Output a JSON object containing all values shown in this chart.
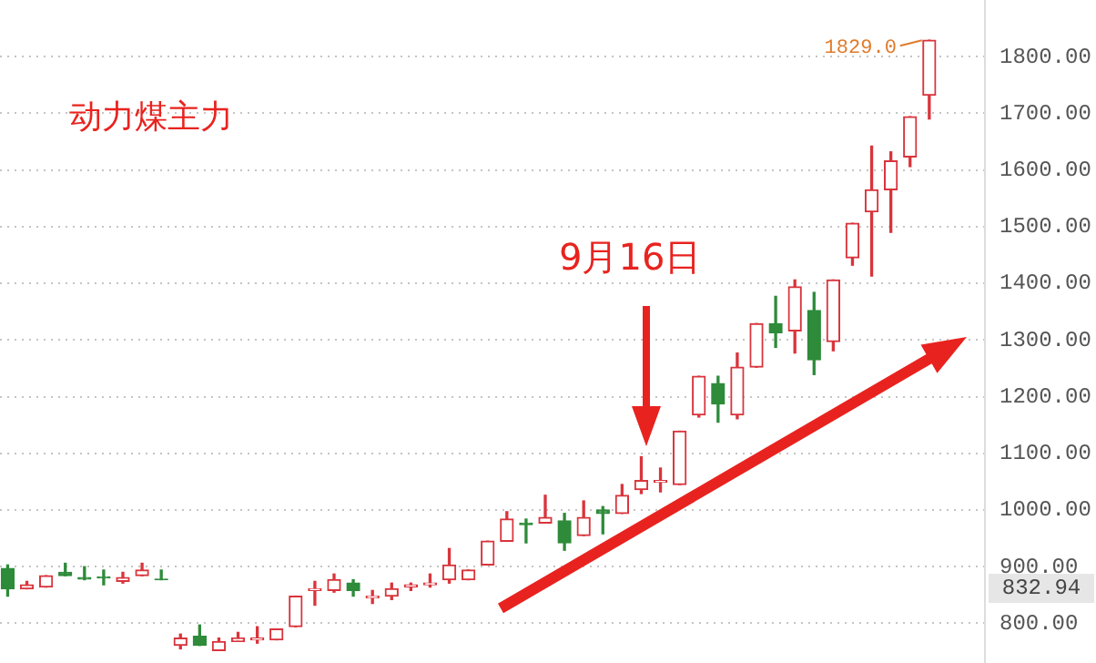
{
  "chart_data": {
    "type": "candlestick",
    "title": "动力煤主力",
    "categories": [
      null,
      null,
      null,
      null,
      null,
      null,
      null,
      null,
      null,
      null,
      null,
      null,
      null,
      null,
      null,
      null,
      null,
      null,
      null,
      null,
      null,
      null,
      null,
      null,
      null,
      null,
      null,
      null,
      null,
      null,
      null,
      null,
      null,
      null,
      null,
      null,
      null,
      null,
      null,
      null,
      null,
      null,
      null,
      null,
      null,
      null,
      null,
      null,
      null
    ],
    "ohlc": [
      [
        897,
        903,
        848,
        861
      ],
      [
        861,
        874,
        861,
        868
      ],
      [
        864,
        884,
        864,
        884
      ],
      [
        890,
        906,
        884,
        884
      ],
      [
        881,
        900,
        877,
        878
      ],
      [
        882,
        894,
        868,
        880
      ],
      [
        874,
        890,
        871,
        881
      ],
      [
        884,
        906,
        884,
        894
      ],
      [
        878,
        894,
        877,
        877
      ],
      [
        761,
        781,
        755,
        774
      ],
      [
        777,
        797,
        761,
        761
      ],
      [
        752,
        774,
        752,
        768
      ],
      [
        768,
        784,
        768,
        774
      ],
      [
        771,
        794,
        765,
        774
      ],
      [
        771,
        790,
        771,
        790
      ],
      [
        794,
        848,
        794,
        848
      ],
      [
        858,
        874,
        832,
        861
      ],
      [
        858,
        887,
        855,
        877
      ],
      [
        871,
        877,
        848,
        858
      ],
      [
        845,
        858,
        835,
        848
      ],
      [
        848,
        871,
        842,
        861
      ],
      [
        864,
        871,
        858,
        868
      ],
      [
        868,
        887,
        864,
        871
      ],
      [
        877,
        932,
        871,
        903
      ],
      [
        877,
        894,
        877,
        894
      ],
      [
        903,
        945,
        903,
        945
      ],
      [
        945,
        997,
        945,
        984
      ],
      [
        977,
        984,
        942,
        974
      ],
      [
        977,
        1026,
        977,
        987
      ],
      [
        981,
        994,
        929,
        942
      ],
      [
        955,
        1016,
        955,
        987
      ],
      [
        1000,
        1006,
        958,
        994
      ],
      [
        994,
        1045,
        994,
        1026
      ],
      [
        1036,
        1094,
        1029,
        1052
      ],
      [
        1049,
        1074,
        1032,
        1052
      ],
      [
        1045,
        1139,
        1045,
        1139
      ],
      [
        1168,
        1236,
        1164,
        1236
      ],
      [
        1223,
        1236,
        1155,
        1187
      ],
      [
        1168,
        1277,
        1161,
        1252
      ],
      [
        1252,
        1329,
        1252,
        1329
      ],
      [
        1329,
        1377,
        1287,
        1313
      ],
      [
        1316,
        1406,
        1277,
        1394
      ],
      [
        1352,
        1384,
        1239,
        1265
      ],
      [
        1297,
        1406,
        1281,
        1406
      ],
      [
        1445,
        1506,
        1432,
        1506
      ],
      [
        1526,
        1642,
        1413,
        1565
      ],
      [
        1565,
        1632,
        1490,
        1616
      ],
      [
        1623,
        1694,
        1606,
        1694
      ],
      [
        1732,
        1829,
        1690,
        1829
      ]
    ],
    "colors": [
      "#2e8b3a",
      "#d9343c",
      "#d9343c",
      "#2e8b3a",
      "#2e8b3a",
      "#2e8b3a",
      "#d9343c",
      "#d9343c",
      "#2e8b3a",
      "#d9343c",
      "#2e8b3a",
      "#d9343c",
      "#d9343c",
      "#d9343c",
      "#d9343c",
      "#d9343c",
      "#d9343c",
      "#d9343c",
      "#2e8b3a",
      "#d9343c",
      "#d9343c",
      "#d9343c",
      "#d9343c",
      "#d9343c",
      "#d9343c",
      "#d9343c",
      "#d9343c",
      "#2e8b3a",
      "#d9343c",
      "#2e8b3a",
      "#d9343c",
      "#2e8b3a",
      "#d9343c",
      "#d9343c",
      "#d9343c",
      "#d9343c",
      "#d9343c",
      "#2e8b3a",
      "#d9343c",
      "#d9343c",
      "#2e8b3a",
      "#d9343c",
      "#2e8b3a",
      "#d9343c",
      "#d9343c",
      "#d9343c",
      "#d9343c",
      "#d9343c",
      "#d9343c"
    ],
    "ylim": [
      730,
      1900
    ],
    "yticks": [
      {
        "value": 800,
        "label": "800.00"
      },
      {
        "value": 900,
        "label": "900.00"
      },
      {
        "value": 1000,
        "label": "1000.00"
      },
      {
        "value": 1100,
        "label": "1100.00"
      },
      {
        "value": 1200,
        "label": "1200.00"
      },
      {
        "value": 1300,
        "label": "1300.00"
      },
      {
        "value": 1400,
        "label": "1400.00"
      },
      {
        "value": 1500,
        "label": "1500.00"
      },
      {
        "value": 1600,
        "label": "1600.00"
      },
      {
        "value": 1700,
        "label": "1700.00"
      },
      {
        "value": 1800,
        "label": "1800.00"
      }
    ],
    "grid": "y",
    "annotations": [
      "1829.0",
      "9月16日",
      "832.94"
    ]
  }
}
